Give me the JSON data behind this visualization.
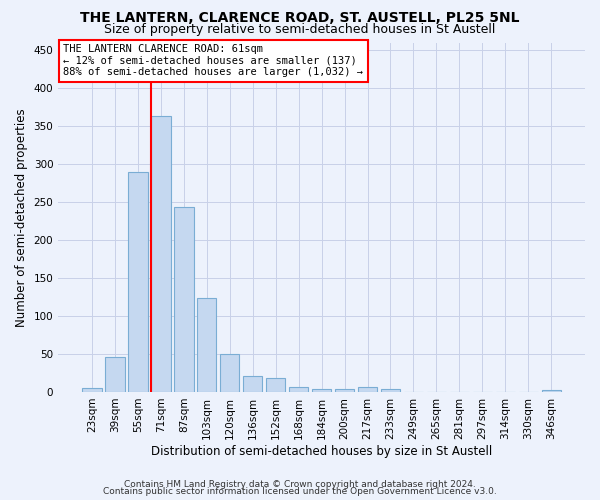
{
  "title": "THE LANTERN, CLARENCE ROAD, ST. AUSTELL, PL25 5NL",
  "subtitle": "Size of property relative to semi-detached houses in St Austell",
  "xlabel": "Distribution of semi-detached houses by size in St Austell",
  "ylabel": "Number of semi-detached properties",
  "footer1": "Contains HM Land Registry data © Crown copyright and database right 2024.",
  "footer2": "Contains public sector information licensed under the Open Government Licence v3.0.",
  "bar_labels": [
    "23sqm",
    "39sqm",
    "55sqm",
    "71sqm",
    "87sqm",
    "103sqm",
    "120sqm",
    "136sqm",
    "152sqm",
    "168sqm",
    "184sqm",
    "200sqm",
    "217sqm",
    "233sqm",
    "249sqm",
    "265sqm",
    "281sqm",
    "297sqm",
    "314sqm",
    "330sqm",
    "346sqm"
  ],
  "bar_values": [
    5,
    46,
    289,
    363,
    244,
    124,
    50,
    21,
    19,
    7,
    4,
    4,
    6,
    4,
    0,
    0,
    0,
    0,
    0,
    0,
    3
  ],
  "bar_color": "#c5d8f0",
  "bar_edge_color": "#7aadd4",
  "vline_x": 2.57,
  "vline_color": "red",
  "annotation_line1": "THE LANTERN CLARENCE ROAD: 61sqm",
  "annotation_line2": "← 12% of semi-detached houses are smaller (137)",
  "annotation_line3": "88% of semi-detached houses are larger (1,032) →",
  "annotation_box_color": "white",
  "annotation_border_color": "red",
  "ylim": [
    0,
    460
  ],
  "yticks": [
    0,
    50,
    100,
    150,
    200,
    250,
    300,
    350,
    400,
    450
  ],
  "bg_color": "#edf2fc",
  "grid_color": "#c8d0e8",
  "title_fontsize": 10,
  "subtitle_fontsize": 9,
  "tick_fontsize": 7.5,
  "xlabel_fontsize": 8.5,
  "ylabel_fontsize": 8.5,
  "footer_fontsize": 6.5
}
